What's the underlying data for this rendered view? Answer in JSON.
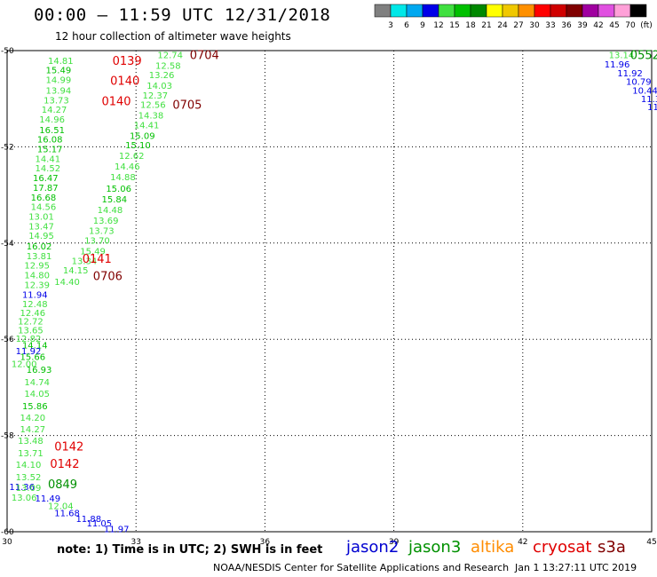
{
  "title": "00:00 – 11:59 UTC 12/31/2018",
  "subtitle": "12 hour collection of altimeter wave heights",
  "colorbar": {
    "labels": [
      "3",
      "6",
      "9",
      "12",
      "15",
      "18",
      "21",
      "24",
      "27",
      "30",
      "33",
      "36",
      "39",
      "42",
      "45",
      "70",
      "(ft)"
    ],
    "colors": [
      "#808080",
      "#00e8e8",
      "#00a8f0",
      "#0000e8",
      "#40e040",
      "#00c000",
      "#008800",
      "#ffff00",
      "#f0c800",
      "#ff9000",
      "#ff0000",
      "#d00000",
      "#800000",
      "#a000a0",
      "#e050e0",
      "#ffa0d8",
      "#000000"
    ]
  },
  "axes": {
    "x_ticks": [
      "30",
      "33",
      "36",
      "39",
      "42",
      "45"
    ],
    "y_ticks": [
      "-50",
      "-52",
      "-54",
      "-56",
      "-58",
      "-60"
    ],
    "x_range": [
      30,
      45
    ],
    "y_range": [
      -60,
      -50
    ]
  },
  "satellites": {
    "jason2": {
      "label": "jason2",
      "color": "#0000d0"
    },
    "jason3": {
      "label": "jason3",
      "color": "#009000"
    },
    "altika": {
      "label": "altika",
      "color": "#ff8c00"
    },
    "cryosat": {
      "label": "cryosat",
      "color": "#e00000"
    },
    "s3a": {
      "label": "s3a",
      "color": "#800000"
    }
  },
  "time_labels": [
    {
      "text": "0139",
      "lon": 32.45,
      "lat": -50.2,
      "sat": "cryosat"
    },
    {
      "text": "0140",
      "lon": 32.4,
      "lat": -50.62,
      "sat": "cryosat"
    },
    {
      "text": "0140",
      "lon": 32.2,
      "lat": -51.04,
      "sat": "cryosat"
    },
    {
      "text": "0141",
      "lon": 31.75,
      "lat": -54.32,
      "sat": "cryosat"
    },
    {
      "text": "0142",
      "lon": 31.1,
      "lat": -58.22,
      "sat": "cryosat"
    },
    {
      "text": "0142",
      "lon": 31.0,
      "lat": -58.58,
      "sat": "cryosat"
    },
    {
      "text": "0704",
      "lon": 34.25,
      "lat": -50.08,
      "sat": "s3a"
    },
    {
      "text": "0705",
      "lon": 33.85,
      "lat": -51.12,
      "sat": "s3a"
    },
    {
      "text": "0706",
      "lon": 32.0,
      "lat": -54.68,
      "sat": "s3a"
    },
    {
      "text": "0552",
      "lon": 44.5,
      "lat": -50.08,
      "sat": "jason3"
    },
    {
      "text": "0849",
      "lon": 30.95,
      "lat": -59.0,
      "sat": "jason3"
    }
  ],
  "wave_heights": [
    {
      "v": "14.81",
      "lon": 30.95,
      "lat": -50.2,
      "c": "#40e040"
    },
    {
      "v": "15.49",
      "lon": 30.9,
      "lat": -50.4,
      "c": "#00c000"
    },
    {
      "v": "14.99",
      "lon": 30.9,
      "lat": -50.6,
      "c": "#40e040"
    },
    {
      "v": "13.94",
      "lon": 30.9,
      "lat": -50.82,
      "c": "#40e040"
    },
    {
      "v": "13.73",
      "lon": 30.85,
      "lat": -51.02,
      "c": "#40e040"
    },
    {
      "v": "14.27",
      "lon": 30.8,
      "lat": -51.22,
      "c": "#40e040"
    },
    {
      "v": "14.96",
      "lon": 30.75,
      "lat": -51.42,
      "c": "#40e040"
    },
    {
      "v": "16.51",
      "lon": 30.75,
      "lat": -51.64,
      "c": "#00c000"
    },
    {
      "v": "16.08",
      "lon": 30.7,
      "lat": -51.84,
      "c": "#00c000"
    },
    {
      "v": "15.17",
      "lon": 30.7,
      "lat": -52.04,
      "c": "#00c000"
    },
    {
      "v": "14.41",
      "lon": 30.65,
      "lat": -52.24,
      "c": "#40e040"
    },
    {
      "v": "14.52",
      "lon": 30.65,
      "lat": -52.44,
      "c": "#40e040"
    },
    {
      "v": "16.47",
      "lon": 30.6,
      "lat": -52.64,
      "c": "#00c000"
    },
    {
      "v": "17.87",
      "lon": 30.6,
      "lat": -52.84,
      "c": "#00c000"
    },
    {
      "v": "16.68",
      "lon": 30.55,
      "lat": -53.04,
      "c": "#00c000"
    },
    {
      "v": "14.56",
      "lon": 30.55,
      "lat": -53.24,
      "c": "#40e040"
    },
    {
      "v": "13.01",
      "lon": 30.5,
      "lat": -53.44,
      "c": "#40e040"
    },
    {
      "v": "13.47",
      "lon": 30.5,
      "lat": -53.64,
      "c": "#40e040"
    },
    {
      "v": "14.95",
      "lon": 30.5,
      "lat": -53.84,
      "c": "#40e040"
    },
    {
      "v": "16.02",
      "lon": 30.45,
      "lat": -54.06,
      "c": "#00c000"
    },
    {
      "v": "13.81",
      "lon": 30.45,
      "lat": -54.26,
      "c": "#40e040"
    },
    {
      "v": "12.95",
      "lon": 30.4,
      "lat": -54.46,
      "c": "#40e040"
    },
    {
      "v": "14.80",
      "lon": 30.4,
      "lat": -54.66,
      "c": "#40e040"
    },
    {
      "v": "12.39",
      "lon": 30.4,
      "lat": -54.86,
      "c": "#40e040"
    },
    {
      "v": "11.94",
      "lon": 30.35,
      "lat": -55.06,
      "c": "#0000e8"
    },
    {
      "v": "12.48",
      "lon": 30.35,
      "lat": -55.26,
      "c": "#40e040"
    },
    {
      "v": "12.46",
      "lon": 30.3,
      "lat": -55.44,
      "c": "#40e040"
    },
    {
      "v": "12.72",
      "lon": 30.25,
      "lat": -55.62,
      "c": "#40e040"
    },
    {
      "v": "13.65",
      "lon": 30.25,
      "lat": -55.8,
      "c": "#40e040"
    },
    {
      "v": "12.82",
      "lon": 30.2,
      "lat": -55.98,
      "c": "#40e040"
    },
    {
      "v": "14.14",
      "lon": 30.35,
      "lat": -56.12,
      "c": "#00c000"
    },
    {
      "v": "11.92",
      "lon": 30.2,
      "lat": -56.24,
      "c": "#0000e8"
    },
    {
      "v": "15.66",
      "lon": 30.3,
      "lat": -56.36,
      "c": "#00c000"
    },
    {
      "v": "12.00",
      "lon": 30.1,
      "lat": -56.5,
      "c": "#40e040"
    },
    {
      "v": "16.93",
      "lon": 30.45,
      "lat": -56.62,
      "c": "#00c000"
    },
    {
      "v": "14.74",
      "lon": 30.4,
      "lat": -56.88,
      "c": "#40e040"
    },
    {
      "v": "14.05",
      "lon": 30.4,
      "lat": -57.12,
      "c": "#40e040"
    },
    {
      "v": "15.86",
      "lon": 30.35,
      "lat": -57.38,
      "c": "#00c000"
    },
    {
      "v": "14.20",
      "lon": 30.3,
      "lat": -57.62,
      "c": "#40e040"
    },
    {
      "v": "14.27",
      "lon": 30.3,
      "lat": -57.86,
      "c": "#40e040"
    },
    {
      "v": "13.48",
      "lon": 30.25,
      "lat": -58.1,
      "c": "#40e040"
    },
    {
      "v": "13.71",
      "lon": 30.25,
      "lat": -58.36,
      "c": "#40e040"
    },
    {
      "v": "14.10",
      "lon": 30.2,
      "lat": -58.6,
      "c": "#40e040"
    },
    {
      "v": "13.52",
      "lon": 30.2,
      "lat": -58.86,
      "c": "#40e040"
    },
    {
      "v": "11.36",
      "lon": 30.05,
      "lat": -59.06,
      "c": "#0000e8"
    },
    {
      "v": "13.09",
      "lon": 30.2,
      "lat": -59.08,
      "c": "#40e040"
    },
    {
      "v": "13.06",
      "lon": 30.1,
      "lat": -59.28,
      "c": "#40e040"
    },
    {
      "v": "11.49",
      "lon": 30.65,
      "lat": -59.3,
      "c": "#0000e8"
    },
    {
      "v": "12.04",
      "lon": 30.95,
      "lat": -59.46,
      "c": "#40e040"
    },
    {
      "v": "11.68",
      "lon": 31.1,
      "lat": -59.6,
      "c": "#0000e8"
    },
    {
      "v": "11.88",
      "lon": 31.6,
      "lat": -59.72,
      "c": "#0000e8"
    },
    {
      "v": "11.05",
      "lon": 31.85,
      "lat": -59.82,
      "c": "#0000e8"
    },
    {
      "v": "11.97",
      "lon": 32.25,
      "lat": -59.94,
      "c": "#0000e8"
    },
    {
      "v": "12.74",
      "lon": 33.5,
      "lat": -50.08,
      "c": "#40e040"
    },
    {
      "v": "12.58",
      "lon": 33.45,
      "lat": -50.3,
      "c": "#40e040"
    },
    {
      "v": "13.26",
      "lon": 33.3,
      "lat": -50.5,
      "c": "#40e040"
    },
    {
      "v": "14.03",
      "lon": 33.25,
      "lat": -50.72,
      "c": "#40e040"
    },
    {
      "v": "12.37",
      "lon": 33.15,
      "lat": -50.92,
      "c": "#40e040"
    },
    {
      "v": "12.56",
      "lon": 33.1,
      "lat": -51.12,
      "c": "#40e040"
    },
    {
      "v": "14.38",
      "lon": 33.05,
      "lat": -51.34,
      "c": "#40e040"
    },
    {
      "v": "14.41",
      "lon": 32.95,
      "lat": -51.54,
      "c": "#40e040"
    },
    {
      "v": "15.09",
      "lon": 32.85,
      "lat": -51.76,
      "c": "#00c000"
    },
    {
      "v": "15.10",
      "lon": 32.75,
      "lat": -51.96,
      "c": "#00c000"
    },
    {
      "v": "12.62",
      "lon": 32.6,
      "lat": -52.18,
      "c": "#40e040"
    },
    {
      "v": "14.46",
      "lon": 32.5,
      "lat": -52.4,
      "c": "#40e040"
    },
    {
      "v": "14.88",
      "lon": 32.4,
      "lat": -52.62,
      "c": "#40e040"
    },
    {
      "v": "15.06",
      "lon": 32.3,
      "lat": -52.86,
      "c": "#00c000"
    },
    {
      "v": "15.84",
      "lon": 32.2,
      "lat": -53.08,
      "c": "#00c000"
    },
    {
      "v": "14.48",
      "lon": 32.1,
      "lat": -53.3,
      "c": "#40e040"
    },
    {
      "v": "13.69",
      "lon": 32.0,
      "lat": -53.52,
      "c": "#40e040"
    },
    {
      "v": "13.73",
      "lon": 31.9,
      "lat": -53.74,
      "c": "#40e040"
    },
    {
      "v": "13.70",
      "lon": 31.8,
      "lat": -53.94,
      "c": "#40e040"
    },
    {
      "v": "15.49",
      "lon": 31.7,
      "lat": -54.16,
      "c": "#40e040"
    },
    {
      "v": "13.34",
      "lon": 31.5,
      "lat": -54.36,
      "c": "#40e040"
    },
    {
      "v": "14.15",
      "lon": 31.3,
      "lat": -54.56,
      "c": "#40e040"
    },
    {
      "v": "14.40",
      "lon": 31.1,
      "lat": -54.8,
      "c": "#40e040"
    },
    {
      "v": "13.14",
      "lon": 44.0,
      "lat": -50.08,
      "c": "#40e040"
    },
    {
      "v": "11.96",
      "lon": 43.9,
      "lat": -50.28,
      "c": "#0000e8"
    },
    {
      "v": "11.92",
      "lon": 44.2,
      "lat": -50.46,
      "c": "#0000e8"
    },
    {
      "v": "10.79",
      "lon": 44.4,
      "lat": -50.64,
      "c": "#0000e8"
    },
    {
      "v": "10.44",
      "lon": 44.55,
      "lat": -50.82,
      "c": "#0000e8"
    },
    {
      "v": "11.3",
      "lon": 44.75,
      "lat": -51.0,
      "c": "#0000e8"
    },
    {
      "v": "11",
      "lon": 44.9,
      "lat": -51.16,
      "c": "#0000e8"
    }
  ],
  "note": "note: 1) Time is in UTC; 2) SWH is in feet",
  "credit": "NOAA/NESDIS Center for Satellite Applications and Research",
  "generated": "Jan  1 13:27:11 UTC 2019"
}
